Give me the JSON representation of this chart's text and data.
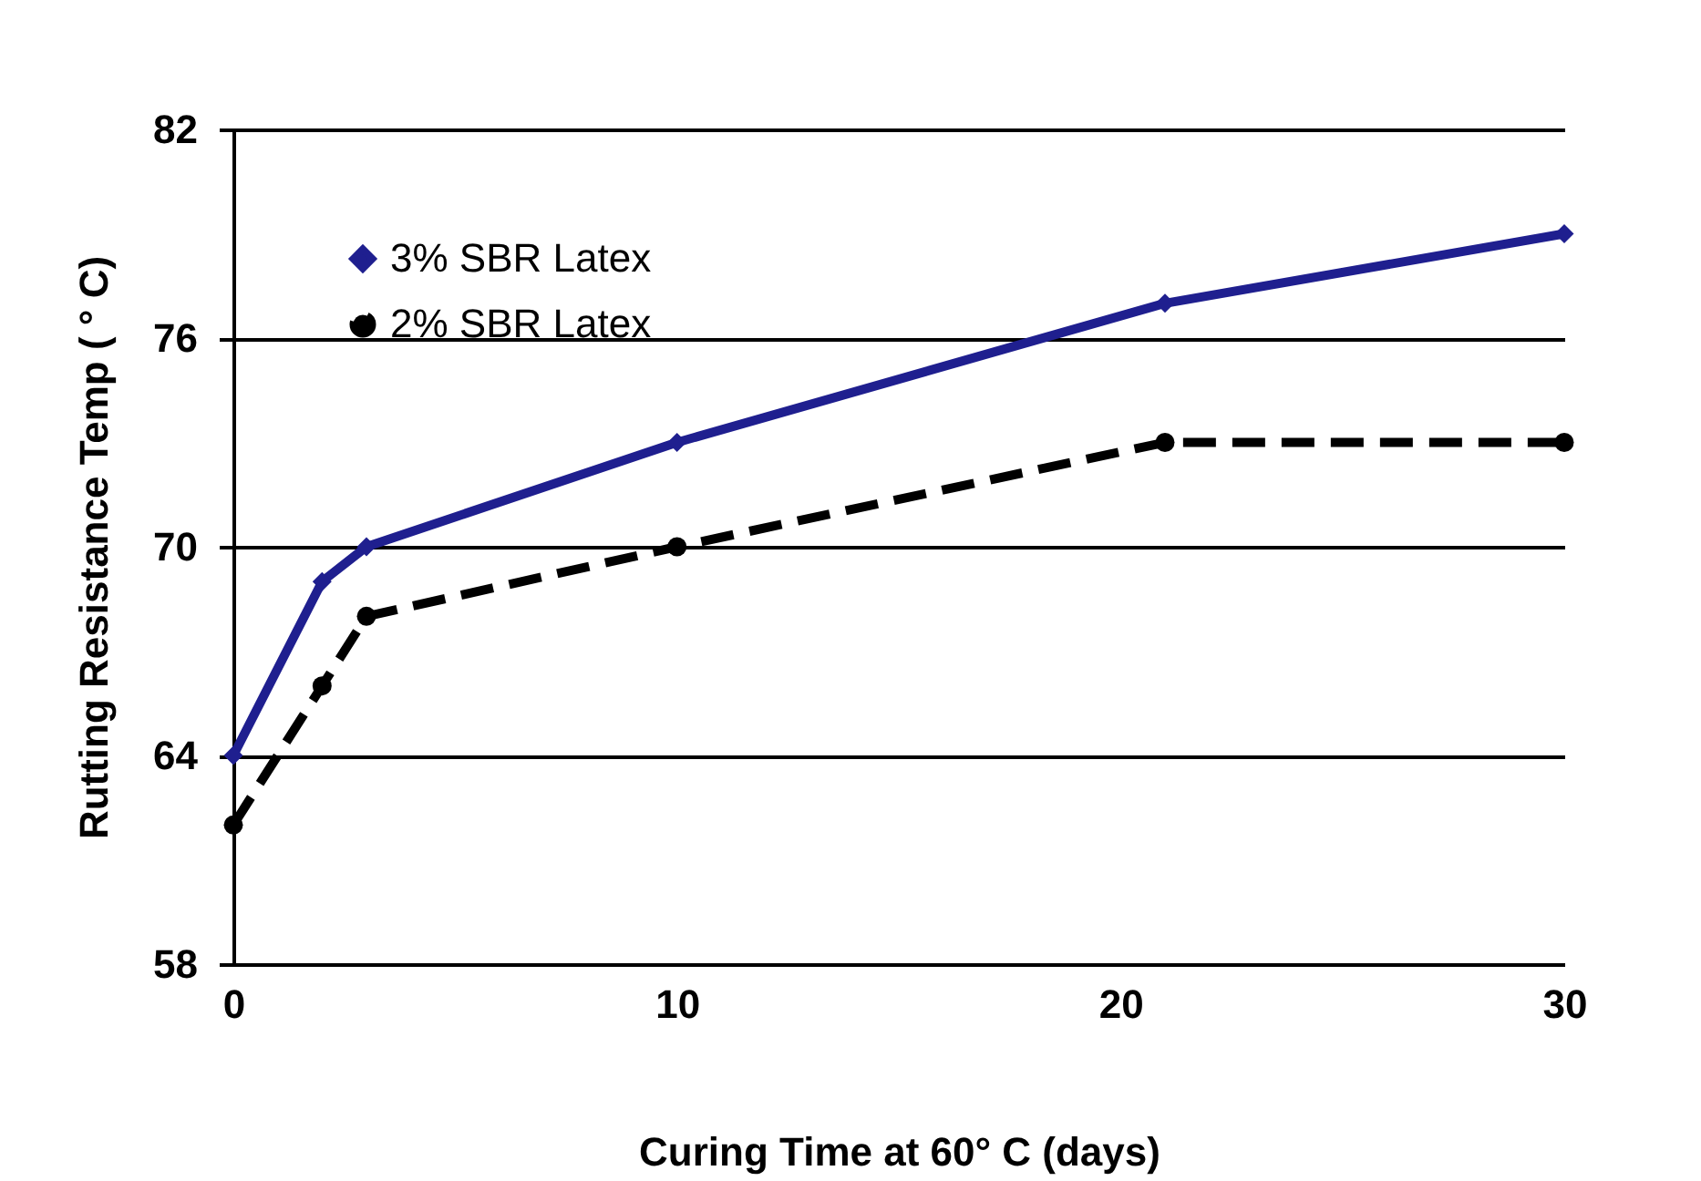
{
  "chart_data": {
    "type": "line",
    "xlabel": "Curing Time at 60° C (days)",
    "ylabel": "Rutting Resistance Temp ( ° C)",
    "x": [
      0,
      2,
      3,
      10,
      21,
      30
    ],
    "series": [
      {
        "name": "3% SBR Latex",
        "color": "#1f1f8f",
        "values": [
          64,
          69,
          70,
          73,
          77,
          79
        ],
        "marker": "diamond",
        "line_style": "solid"
      },
      {
        "name": "2% SBR Latex",
        "color": "#000000",
        "values": [
          62,
          66,
          68,
          70,
          73,
          73
        ],
        "marker": "circle",
        "line_style": "dashed"
      }
    ],
    "xlim": [
      0,
      30
    ],
    "xticks": [
      0,
      10,
      20,
      30
    ],
    "ylim": [
      58,
      82
    ],
    "yticks": [
      58,
      64,
      70,
      76,
      82
    ],
    "grid": "y",
    "legend": "top left"
  }
}
